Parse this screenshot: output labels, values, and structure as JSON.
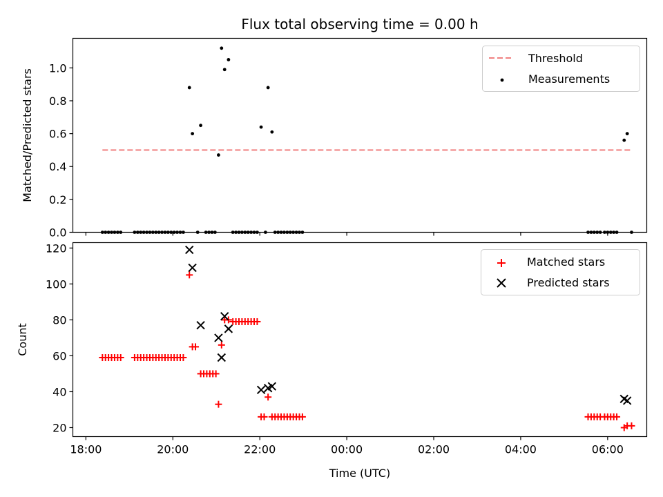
{
  "chart_data": [
    {
      "type": "scatter",
      "title": "Flux total observing time = 0.00 h",
      "xlabel": "",
      "ylabel": "Matched/Predicted stars",
      "xlim": [
        17.7,
        30.9
      ],
      "ylim": [
        0,
        1.18
      ],
      "yticks": [
        0.0,
        0.2,
        0.4,
        0.6,
        0.8,
        1.0
      ],
      "ytick_labels": [
        "0.0",
        "0.2",
        "0.4",
        "0.6",
        "0.8",
        "1.0"
      ],
      "legend_position": "top-right",
      "series": [
        {
          "name": "Threshold",
          "kind": "dashed-line",
          "color": "#f08080",
          "x": [
            18.38,
            30.55
          ],
          "y": [
            0.5,
            0.5
          ]
        },
        {
          "name": "Measurements",
          "kind": "dot",
          "color": "#000000",
          "x": [
            18.38,
            18.45,
            18.52,
            18.59,
            18.66,
            18.73,
            18.8,
            19.12,
            19.19,
            19.26,
            19.33,
            19.4,
            19.47,
            19.54,
            19.61,
            19.68,
            19.75,
            19.82,
            19.89,
            19.96,
            20.03,
            20.1,
            20.17,
            20.24,
            20.38,
            20.45,
            20.57,
            20.64,
            20.76,
            20.83,
            20.9,
            20.97,
            21.05,
            21.12,
            21.19,
            21.28,
            21.38,
            21.45,
            21.52,
            21.59,
            21.66,
            21.73,
            21.8,
            21.87,
            21.94,
            22.03,
            22.13,
            22.19,
            22.28,
            22.35,
            22.42,
            22.49,
            22.56,
            22.63,
            22.7,
            22.77,
            22.84,
            22.91,
            22.98,
            29.55,
            29.62,
            29.69,
            29.76,
            29.83,
            29.93,
            30.0,
            30.07,
            30.14,
            30.21,
            30.38,
            30.45,
            30.55
          ],
          "y": [
            0,
            0,
            0,
            0,
            0,
            0,
            0,
            0,
            0,
            0,
            0,
            0,
            0,
            0,
            0,
            0,
            0,
            0,
            0,
            0,
            0,
            0,
            0,
            0,
            0.88,
            0.6,
            0,
            0.65,
            0,
            0,
            0,
            0,
            0.47,
            1.12,
            0.99,
            1.05,
            0,
            0,
            0,
            0,
            0,
            0,
            0,
            0,
            0,
            0.64,
            0,
            0.88,
            0.61,
            0,
            0,
            0,
            0,
            0,
            0,
            0,
            0,
            0,
            0,
            0,
            0,
            0,
            0,
            0,
            0,
            0,
            0,
            0,
            0,
            0.56,
            0.6,
            0
          ]
        }
      ]
    },
    {
      "type": "scatter",
      "title": "",
      "xlabel": "Time (UTC)",
      "ylabel": "Count",
      "xlim": [
        17.7,
        30.9
      ],
      "ylim": [
        15,
        123
      ],
      "yticks": [
        20,
        40,
        60,
        80,
        100,
        120
      ],
      "ytick_labels": [
        "20",
        "40",
        "60",
        "80",
        "100",
        "120"
      ],
      "xticks": [
        18,
        20,
        22,
        24,
        26,
        28,
        30
      ],
      "xtick_labels": [
        "18:00",
        "20:00",
        "22:00",
        "00:00",
        "02:00",
        "04:00",
        "06:00"
      ],
      "legend_position": "top-right",
      "series": [
        {
          "name": "Matched stars",
          "kind": "plus",
          "color": "#ff0000",
          "x": [
            18.38,
            18.45,
            18.52,
            18.59,
            18.66,
            18.73,
            18.8,
            19.12,
            19.19,
            19.26,
            19.33,
            19.4,
            19.47,
            19.54,
            19.61,
            19.68,
            19.75,
            19.82,
            19.89,
            19.96,
            20.03,
            20.1,
            20.17,
            20.24,
            20.38,
            20.45,
            20.52,
            20.64,
            20.71,
            20.78,
            20.85,
            20.92,
            20.99,
            21.05,
            21.12,
            21.19,
            21.28,
            21.38,
            21.45,
            21.52,
            21.59,
            21.66,
            21.73,
            21.8,
            21.87,
            21.94,
            22.03,
            22.1,
            22.19,
            22.28,
            22.35,
            22.42,
            22.49,
            22.56,
            22.63,
            22.7,
            22.77,
            22.84,
            22.91,
            22.98,
            29.55,
            29.62,
            29.69,
            29.76,
            29.83,
            29.93,
            30.0,
            30.07,
            30.14,
            30.21,
            30.38,
            30.45,
            30.55
          ],
          "y": [
            59,
            59,
            59,
            59,
            59,
            59,
            59,
            59,
            59,
            59,
            59,
            59,
            59,
            59,
            59,
            59,
            59,
            59,
            59,
            59,
            59,
            59,
            59,
            59,
            105,
            65,
            65,
            50,
            50,
            50,
            50,
            50,
            50,
            33,
            66,
            80,
            80,
            79,
            79,
            79,
            79,
            79,
            79,
            79,
            79,
            79,
            26,
            26,
            37,
            26,
            26,
            26,
            26,
            26,
            26,
            26,
            26,
            26,
            26,
            26,
            26,
            26,
            26,
            26,
            26,
            26,
            26,
            26,
            26,
            26,
            20,
            21,
            21
          ]
        },
        {
          "name": "Predicted stars",
          "kind": "cross",
          "color": "#000000",
          "x": [
            20.38,
            20.45,
            20.64,
            21.05,
            21.12,
            21.19,
            21.28,
            22.03,
            22.19,
            22.28,
            30.38,
            30.45
          ],
          "y": [
            119,
            109,
            77,
            70,
            59,
            82,
            75,
            41,
            42,
            43,
            36,
            35
          ]
        }
      ]
    }
  ]
}
